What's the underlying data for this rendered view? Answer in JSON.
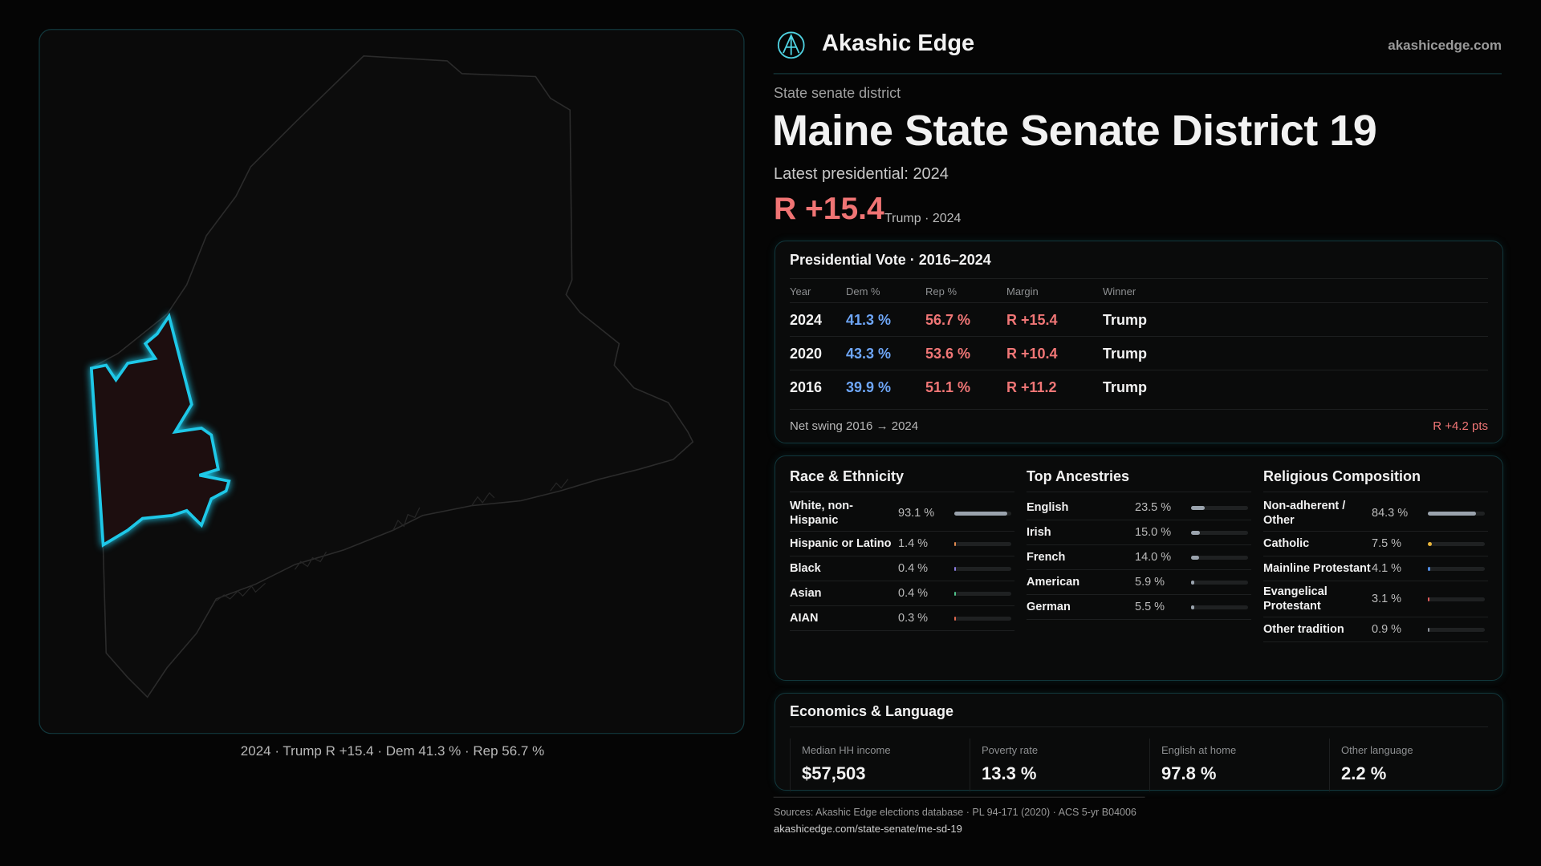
{
  "brand": {
    "name": "Akashic Edge",
    "url": "akashicedge.com"
  },
  "header": {
    "kicker": "State senate district",
    "title": "Maine State Senate District 19",
    "latest_label": "Latest presidential: 2024",
    "margin": "R +15.4",
    "margin_note": "Trump · 2024"
  },
  "map": {
    "caption": "2024 · Trump R +15.4 · Dem 41.3 % · Rep 56.7 %"
  },
  "vote_table": {
    "title": "Presidential Vote · 2016–2024",
    "columns": [
      "Year",
      "Dem %",
      "Rep %",
      "Margin",
      "Winner"
    ],
    "rows": [
      [
        "2024",
        "41.3 %",
        "56.7 %",
        "R +15.4",
        "Trump"
      ],
      [
        "2020",
        "43.3 %",
        "53.6 %",
        "R +10.4",
        "Trump"
      ],
      [
        "2016",
        "39.9 %",
        "51.1 %",
        "R +11.2",
        "Trump"
      ]
    ],
    "net_swing_label": "Net swing 2016 → 2024",
    "net_swing_value": "R +4.2 pts"
  },
  "groups": [
    {
      "title": "Race & Ethnicity",
      "rows": [
        {
          "name": "White, non-Hispanic",
          "value": 93.1,
          "value_label": "93.1 %",
          "color": "#9aa3ad"
        },
        {
          "name": "Hispanic or Latino",
          "value": 1.4,
          "value_label": "1.4 %",
          "color": "#e0894f"
        },
        {
          "name": "Black",
          "value": 0.4,
          "value_label": "0.4 %",
          "color": "#8a7be0"
        },
        {
          "name": "Asian",
          "value": 0.4,
          "value_label": "0.4 %",
          "color": "#4fc08a"
        },
        {
          "name": "AIAN",
          "value": 0.3,
          "value_label": "0.3 %",
          "color": "#e06a4f"
        }
      ]
    },
    {
      "title": "Top Ancestries",
      "rows": [
        {
          "name": "English",
          "value": 23.5,
          "value_label": "23.5 %",
          "color": "#9aa3ad"
        },
        {
          "name": "Irish",
          "value": 15.0,
          "value_label": "15.0 %",
          "color": "#9aa3ad"
        },
        {
          "name": "French",
          "value": 14.0,
          "value_label": "14.0 %",
          "color": "#9aa3ad"
        },
        {
          "name": "American",
          "value": 5.9,
          "value_label": "5.9 %",
          "color": "#9aa3ad"
        },
        {
          "name": "German",
          "value": 5.5,
          "value_label": "5.5 %",
          "color": "#9aa3ad"
        }
      ]
    },
    {
      "title": "Religious Composition",
      "rows": [
        {
          "name": "Non-adherent / Other",
          "value": 84.3,
          "value_label": "84.3 %",
          "color": "#9aa3ad"
        },
        {
          "name": "Catholic",
          "value": 7.5,
          "value_label": "7.5 %",
          "color": "#e8b43a"
        },
        {
          "name": "Mainline Protestant",
          "value": 4.1,
          "value_label": "4.1 %",
          "color": "#4f8ae0"
        },
        {
          "name": "Evangelical Protestant",
          "value": 3.1,
          "value_label": "3.1 %",
          "color": "#e05a5a"
        },
        {
          "name": "Other tradition",
          "value": 0.9,
          "value_label": "0.9 %",
          "color": "#8a8f96"
        }
      ]
    }
  ],
  "economics": {
    "title": "Economics & Language",
    "cells": [
      {
        "label": "Median HH income",
        "value": "$57,503"
      },
      {
        "label": "Poverty rate",
        "value": "13.3 %"
      },
      {
        "label": "English at home",
        "value": "97.8 %"
      },
      {
        "label": "Other language",
        "value": "2.2 %"
      }
    ]
  },
  "footer": {
    "sources": "Sources: Akashic Edge elections database · PL 94-171 (2020) · ACS 5-yr B04006",
    "url": "akashicedge.com/state-senate/me-sd-19"
  }
}
